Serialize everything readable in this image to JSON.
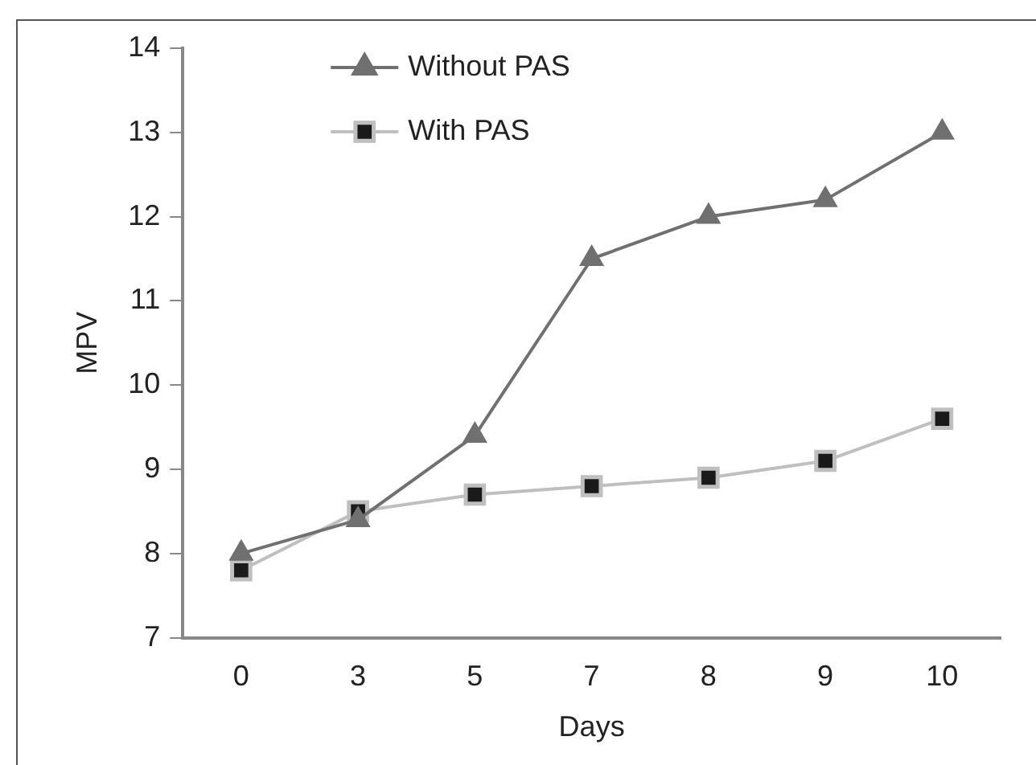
{
  "chart_data": {
    "type": "line",
    "xlabel": "Days",
    "ylabel": "MPV",
    "categories": [
      "0",
      "3",
      "5",
      "7",
      "8",
      "9",
      "10"
    ],
    "series": [
      {
        "name": "Without PAS",
        "color": "#707070",
        "marker": "triangle",
        "values": [
          8.0,
          8.4,
          9.4,
          11.5,
          12.0,
          12.2,
          13.0
        ]
      },
      {
        "name": "With PAS",
        "color": "#bfbfbf",
        "marker": "square",
        "values": [
          7.8,
          8.5,
          8.7,
          8.8,
          8.9,
          9.1,
          9.6
        ]
      }
    ],
    "ylim": [
      7,
      14
    ],
    "yticks": [
      7,
      8,
      9,
      10,
      11,
      12,
      13,
      14
    ],
    "grid": false,
    "legend": "top left"
  }
}
